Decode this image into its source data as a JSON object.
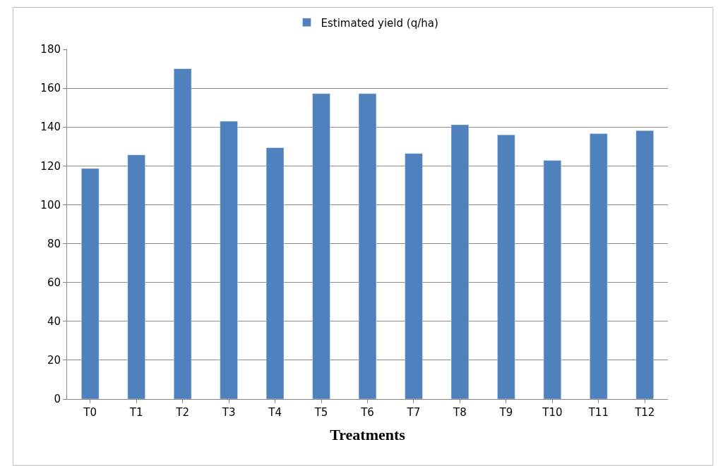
{
  "chart_data": {
    "type": "bar",
    "xlabel": "Treatments",
    "categories": [
      "T0",
      "T1",
      "T2",
      "T3",
      "T4",
      "T5",
      "T6",
      "T7",
      "T8",
      "T9",
      "T10",
      "T11",
      "T12"
    ],
    "series": [
      {
        "name": "Estimated yield (q/ha)",
        "color": "#4f81bd",
        "values": [
          118.7,
          125.7,
          170,
          143,
          129.4,
          157.2,
          157.2,
          126.4,
          141.2,
          136,
          122.8,
          136.6,
          138.2
        ]
      }
    ],
    "ylim": [
      0,
      180
    ],
    "yticks": [
      0,
      20,
      40,
      60,
      80,
      100,
      120,
      140,
      160,
      180
    ],
    "grid": "y",
    "legend": "top"
  }
}
